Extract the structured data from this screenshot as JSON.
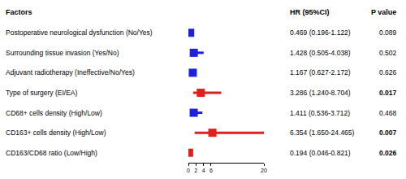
{
  "chart_data": {
    "type": "forest",
    "headers": [
      "Factors",
      "HR (95%CI)",
      "P value"
    ],
    "categories": [
      "Postoperative neurological dysfunction (No/Yes)",
      "Surrounding tissue invasion (Yes/No)",
      "Adjuvant radiotherapy (Ineffective/No/Yes)",
      "Type of surgery (EI/EA)",
      "CD68+ cells density (High/Low)",
      "CD163+ cells density (High/Low)",
      "CD163/CD68 ratio (Low/High)"
    ],
    "values": [
      0.469,
      1.428,
      1.167,
      3.286,
      1.411,
      6.354,
      0.194
    ],
    "ci_lower": [
      0.196,
      0.505,
      0.627,
      1.24,
      0.536,
      1.65,
      0.046
    ],
    "ci_upper": [
      1.122,
      4.038,
      2.172,
      8.704,
      3.712,
      24.465,
      0.821
    ],
    "value_labels": [
      "0.469 (0.196-1.122)",
      "1.428 (0.505-4.038)",
      "1.167 (0.627-2.172)",
      "3.286 (1.240-8.704)",
      "1.411 (0.536-3.712)",
      "6.354 (1.650-24.465)",
      "0.194 (0.046-0.821)"
    ],
    "p_values": [
      0.089,
      0.502,
      0.626,
      0.017,
      0.468,
      0.007,
      0.026
    ],
    "colors": [
      "#1f1fe0",
      "#1f1fe0",
      "#1f1fe0",
      "#e02020",
      "#1f1fe0",
      "#e02020",
      "#e02020"
    ],
    "marker": "square",
    "xlim": [
      0,
      20
    ],
    "xticks": [
      0,
      2,
      4,
      6,
      20
    ],
    "grid": false
  }
}
